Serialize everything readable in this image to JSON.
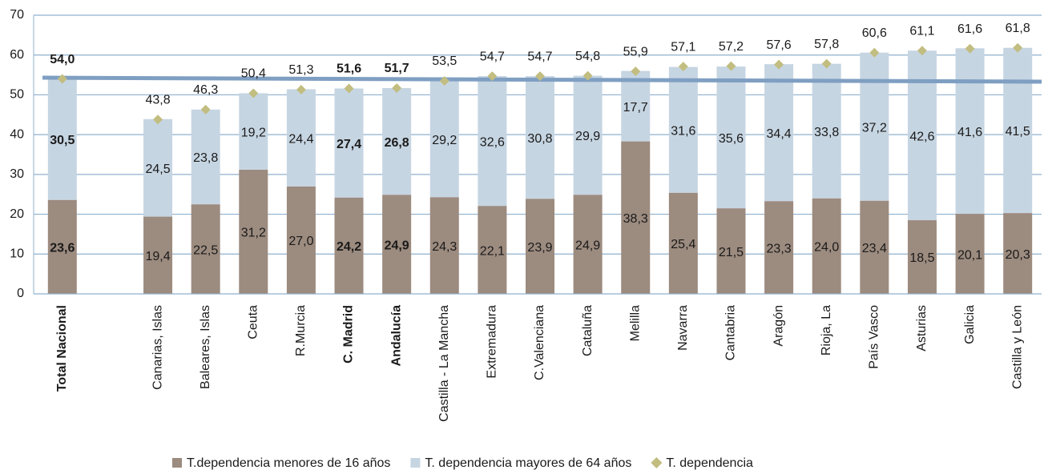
{
  "chart_data": {
    "type": "stacked_bar",
    "categories": [
      "Total Nacional",
      null,
      "Canarias, Islas",
      "Baleares, Islas",
      "Ceuta",
      "R.Murcia",
      "C.  Madrid",
      "Andalucía",
      "Castilla - La Mancha",
      "Extremadura",
      "C.Valenciana",
      "Cataluña",
      "Melilla",
      "Navarra",
      "Cantabria",
      "Aragón",
      "Rioja, La",
      "País Vasco",
      "Asturias",
      "Galicia",
      "Castilla y León"
    ],
    "highlight": [
      0,
      6,
      7
    ],
    "series": [
      {
        "name": "T.dependencia menores de 16 años",
        "color": "#9c8b7f",
        "kind": "bar",
        "values": [
          23.6,
          null,
          19.4,
          22.5,
          31.2,
          27.0,
          24.2,
          24.9,
          24.3,
          22.1,
          23.9,
          24.9,
          38.3,
          25.4,
          21.5,
          23.3,
          24.0,
          23.4,
          18.5,
          20.1,
          20.3
        ],
        "value_labels": [
          "23,6",
          null,
          "19,4",
          "22,5",
          "31,2",
          "27,0",
          "24,2",
          "24,9",
          "24,3",
          "22,1",
          "23,9",
          "24,9",
          "38,3",
          "25,4",
          "21,5",
          "23,3",
          "24,0",
          "23,4",
          "18,5",
          "20,1",
          "20,3"
        ]
      },
      {
        "name": "T. dependencia mayores de 64 años",
        "color": "#c6d5e2",
        "kind": "bar",
        "values": [
          30.5,
          null,
          24.5,
          23.8,
          19.2,
          24.4,
          27.4,
          26.8,
          29.2,
          32.6,
          30.8,
          29.9,
          17.7,
          31.6,
          35.6,
          34.4,
          33.8,
          37.2,
          42.6,
          41.6,
          41.5
        ],
        "value_labels": [
          "30,5",
          null,
          "24,5",
          "23,8",
          "19,2",
          "24,4",
          "27,4",
          "26,8",
          "29,2",
          "32,6",
          "30,8",
          "29,9",
          "17,7",
          "31,6",
          "35,6",
          "34,4",
          "33,8",
          "37,2",
          "42,6",
          "41,6",
          "41,5"
        ]
      },
      {
        "name": "T. dependencia",
        "color": "#c2bd80",
        "kind": "marker",
        "values": [
          54.0,
          null,
          43.8,
          46.3,
          50.4,
          51.3,
          51.6,
          51.7,
          53.5,
          54.7,
          54.7,
          54.8,
          55.9,
          57.1,
          57.2,
          57.6,
          57.8,
          60.6,
          61.1,
          61.6,
          61.8
        ],
        "value_labels": [
          "54,0",
          null,
          "43,8",
          "46,3",
          "50,4",
          "51,3",
          "51,6",
          "51,7",
          "53,5",
          "54,7",
          "54,7",
          "54,8",
          "55,9",
          "57,1",
          "57,2",
          "57,6",
          "57,8",
          "60,6",
          "61,1",
          "61,6",
          "61,8"
        ]
      }
    ],
    "trendline": {
      "color": "#7f9fc2",
      "values": [
        54.3,
        53.3
      ]
    },
    "ylim": [
      0,
      70
    ],
    "yticks": [
      0,
      10,
      20,
      30,
      40,
      50,
      60,
      70
    ],
    "grid": true,
    "grid_color": "#8fb0cf",
    "legend": "bottom"
  }
}
